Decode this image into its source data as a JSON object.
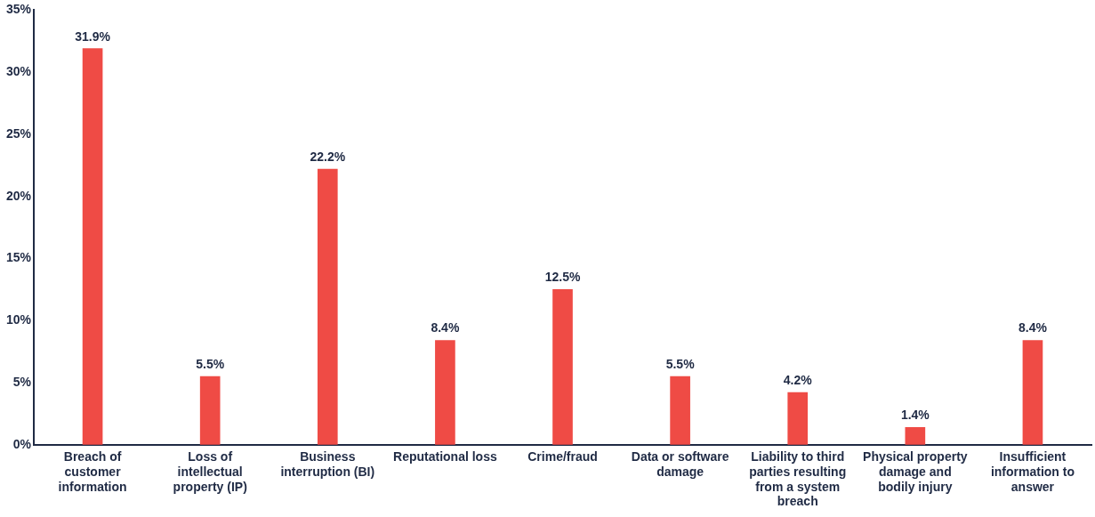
{
  "chart_data": {
    "type": "bar",
    "categories": [
      "Breach of customer information",
      "Loss of intellectual property (IP)",
      "Business interruption (BI)",
      "Reputational loss",
      "Crime/fraud",
      "Data or software damage",
      "Liability to third parties resulting from a system breach",
      "Physical property damage and bodily injury",
      "Insufficient information to answer"
    ],
    "values": [
      31.9,
      5.5,
      22.2,
      8.4,
      12.5,
      5.5,
      4.2,
      1.4,
      8.4
    ],
    "value_labels": [
      "31.9%",
      "5.5%",
      "22.2%",
      "8.4%",
      "12.5%",
      "5.5%",
      "4.2%",
      "1.4%",
      "8.4%"
    ],
    "color": "#ef4b45",
    "ylim": [
      0,
      35
    ],
    "yticks": [
      {
        "value": 0,
        "label": "0%"
      },
      {
        "value": 5,
        "label": "5%"
      },
      {
        "value": 10,
        "label": "10%"
      },
      {
        "value": 15,
        "label": "15%"
      },
      {
        "value": 20,
        "label": "20%"
      },
      {
        "value": 25,
        "label": "25%"
      },
      {
        "value": 30,
        "label": "30%"
      },
      {
        "value": 35,
        "label": "35%"
      }
    ],
    "grid": false,
    "legend": false
  }
}
